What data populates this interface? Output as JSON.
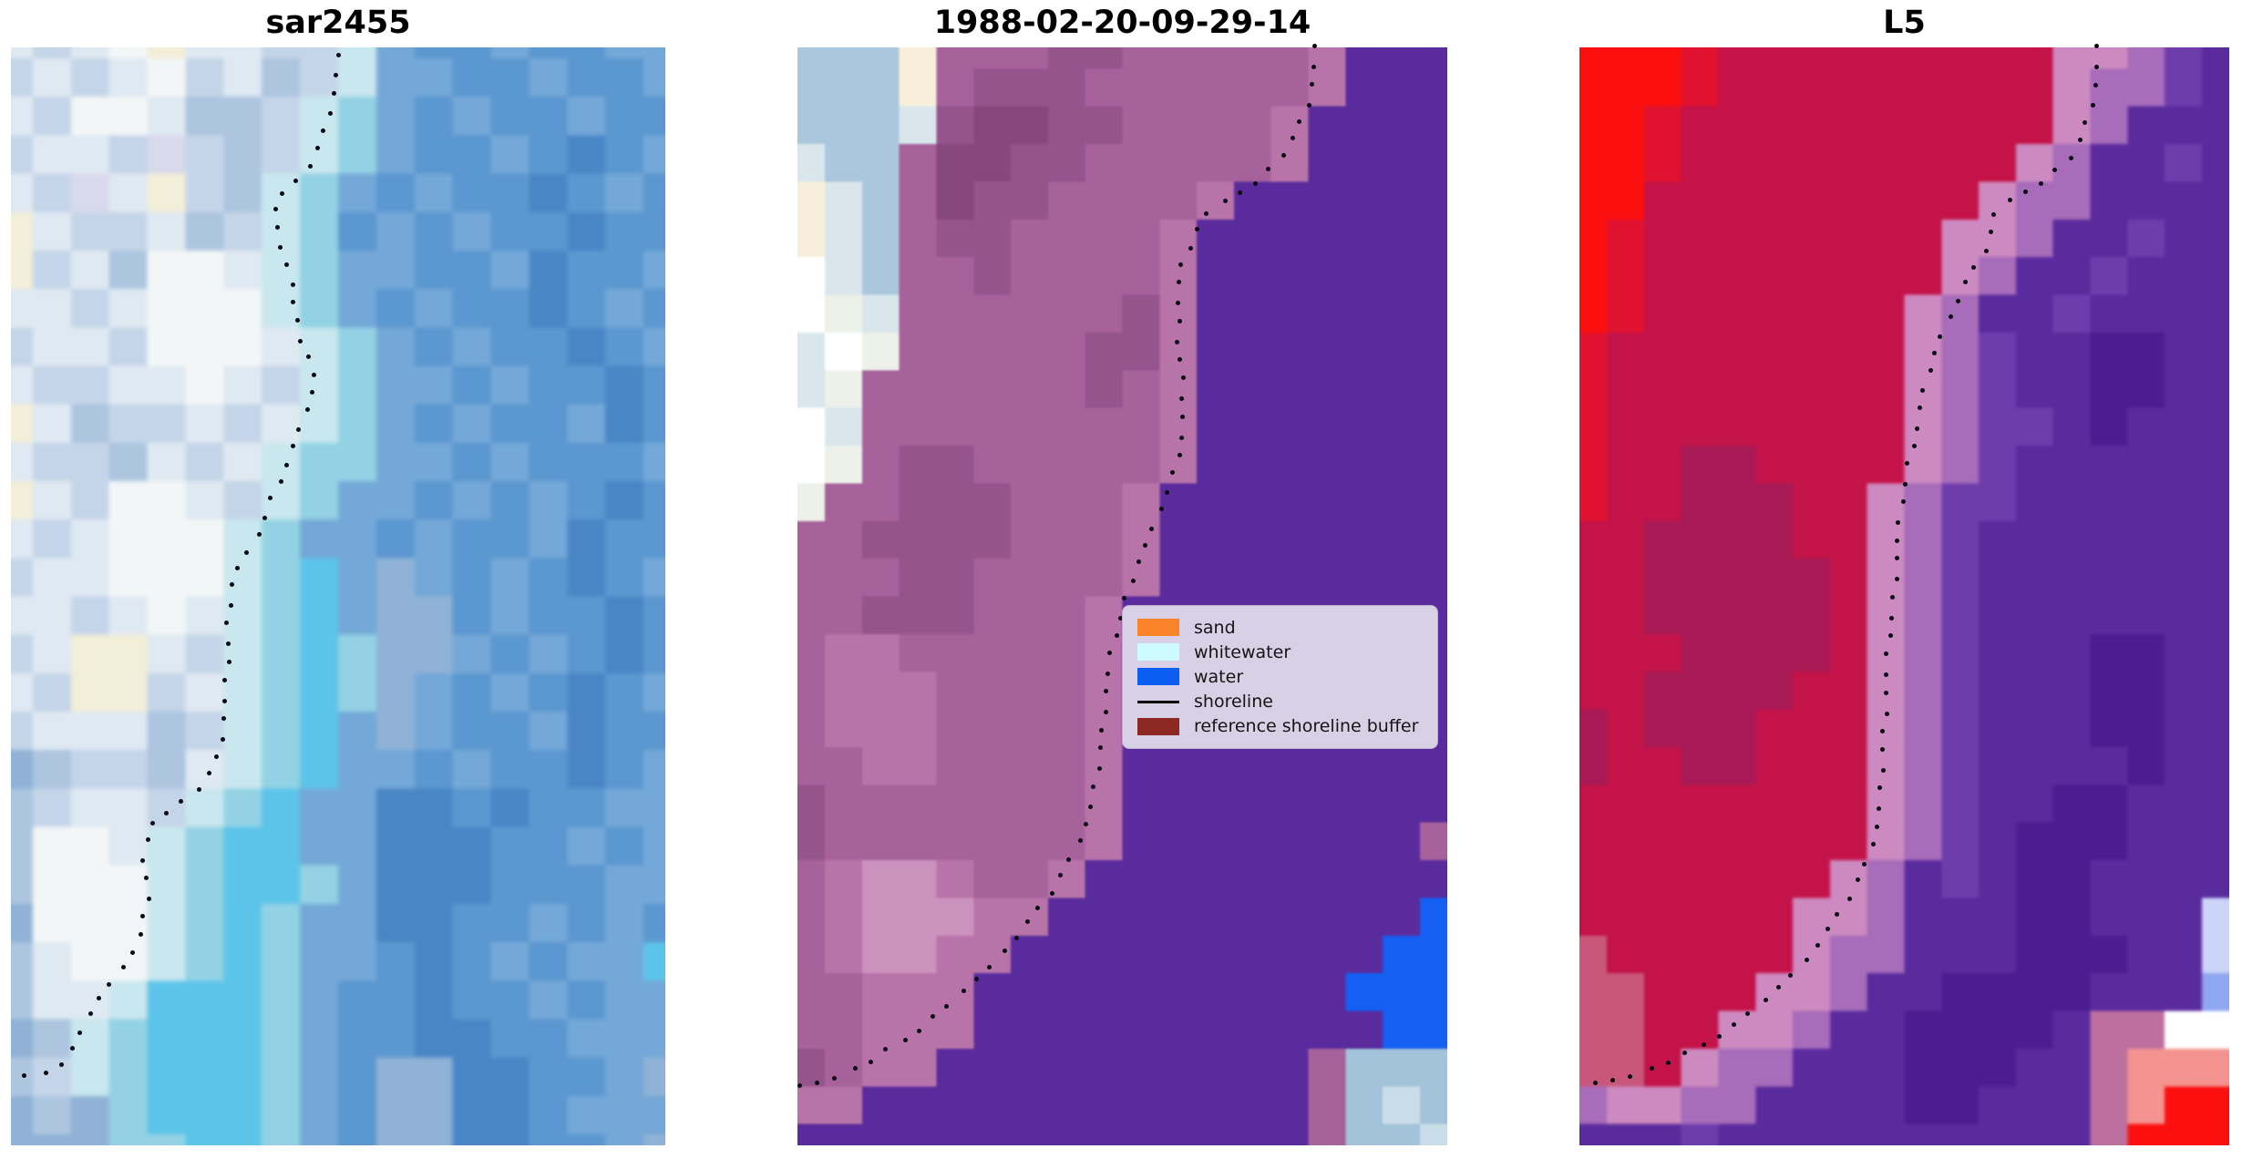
{
  "figure": {
    "background": "#ffffff"
  },
  "chart_data": {
    "type": "heatmap",
    "subtype": "satellite_image_panels_with_shoreline_overlay",
    "note": "Three co-located coastal satellite image panels; a dotted black reference shoreline crosses each panel. Pixel grids are approximate 18x30 color downsamples of the imagery.",
    "shoreline_style": {
      "color": "#0a0a14",
      "dot_size": 5,
      "dot_spacing": 21
    },
    "panels": [
      {
        "title": "sar2455",
        "kind": "SAR backscatter RGB composite (blues/whites)",
        "palette": {
          "0": "#f2eed8",
          "1": "#f3f6f6",
          "2": "#dfe9f2",
          "3": "#c5d5e9",
          "4": "#adc5df",
          "5": "#8fb2d6",
          "6": "#74a8d8",
          "7": "#5b97d0",
          "8": "#4a86c6",
          "9": "#c9e7ee",
          "a": "#93d2e4",
          "b": "#5dc4e9",
          "c": "#d9d9ec"
        },
        "grid": [
          "232102233967767766",
          "323213243966776776",
          "231124439a67677677",
          "3223c3439a67767876",
          "23c20349a676778767",
          "02332439a767677877",
          "03241129a667768776",
          "22321119a676778767",
          "322311129a67677876",
          "233221239a66767787",
          "024332329a67677687",
          "23342329aa66767776",
          "02311239a667676787",
          "2321119a6676776877",
          "3221119ab656767876",
          "2232129ab655767787",
          "3200239aba55676787",
          "2300329aba56767876",
          "3222439ab656776877",
          "5433429ab667677876",
          "432239ab6688787766",
          "41129abb6688877676",
          "41119abba688877766",
          "51119aba6688776767",
          "42119aba667876766b",
          "4229bbba6778776766",
          "549abbba6778877666",
          "439abbba6755887765",
          "545abbba6755887666",
          "555aabba6755887765"
        ],
        "shoreline": [
          [
            0.503,
            0.008
          ],
          [
            0.493,
            0.04
          ],
          [
            0.48,
            0.073
          ],
          [
            0.465,
            0.1
          ],
          [
            0.443,
            0.12
          ],
          [
            0.412,
            0.133
          ],
          [
            0.403,
            0.146
          ],
          [
            0.405,
            0.166
          ],
          [
            0.415,
            0.185
          ],
          [
            0.425,
            0.204
          ],
          [
            0.433,
            0.227
          ],
          [
            0.439,
            0.251
          ],
          [
            0.443,
            0.276
          ],
          [
            0.462,
            0.291
          ],
          [
            0.467,
            0.3
          ],
          [
            0.455,
            0.324
          ],
          [
            0.443,
            0.347
          ],
          [
            0.426,
            0.372
          ],
          [
            0.408,
            0.398
          ],
          [
            0.391,
            0.422
          ],
          [
            0.377,
            0.445
          ],
          [
            0.359,
            0.463
          ],
          [
            0.343,
            0.478
          ],
          [
            0.334,
            0.498
          ],
          [
            0.331,
            0.527
          ],
          [
            0.333,
            0.549
          ],
          [
            0.33,
            0.574
          ],
          [
            0.327,
            0.599
          ],
          [
            0.322,
            0.622
          ],
          [
            0.316,
            0.646
          ],
          [
            0.299,
            0.666
          ],
          [
            0.276,
            0.682
          ],
          [
            0.248,
            0.693
          ],
          [
            0.221,
            0.701
          ],
          [
            0.208,
            0.715
          ],
          [
            0.203,
            0.739
          ],
          [
            0.208,
            0.762
          ],
          [
            0.209,
            0.778
          ],
          [
            0.203,
            0.797
          ],
          [
            0.199,
            0.812
          ],
          [
            0.185,
            0.824
          ],
          [
            0.17,
            0.838
          ],
          [
            0.148,
            0.855
          ],
          [
            0.127,
            0.871
          ],
          [
            0.114,
            0.888
          ],
          [
            0.103,
            0.905
          ],
          [
            0.086,
            0.921
          ],
          [
            0.067,
            0.93
          ],
          [
            0.043,
            0.936
          ],
          [
            0.014,
            0.938
          ],
          [
            0.0,
            0.938
          ]
        ]
      },
      {
        "title": "1988-02-20-09-29-14",
        "kind": "classified Landsat scene (sand/whitewater/water classes over image)",
        "palette": {
          "0": "#ffffff",
          "1": "#d9e7ec",
          "2": "#edf1ea",
          "3": "#a7619b",
          "4": "#95548c",
          "5": "#b874a8",
          "6": "#cb92bd",
          "7": "#5a2b9d",
          "8": "#155ff2",
          "9": "#a3c3da",
          "a": "#c9dde8",
          "b": "#87487f",
          "s": "#abc7de",
          "t": "#f8efda"
        },
        "grid": [
          "ssst33344333335777",
          "ssst34443333335777",
          "sss14bb44333357777",
          "1ss3bb443333357777",
          "t1s3b4433335777777",
          "t1s344333357777777",
          "01s334333357777777",
          "021333333457777777",
          "102333334457777777",
          "123333334357777777",
          "013333333357777777",
          "023443333357777777",
          "233444333577777777",
          "334444333577777777",
          "333443333577777777",
          "334443335777777777",
          "355333335777777777",
          "355533335777777777",
          "355533335777777777",
          "335533335777777777",
          "433333335777777777",
          "433333335777777773",
          "356653357777777777",
          "356665577777777778",
          "356655777777777788",
          "335557777777777888",
          "335557777777777788",
          "435577777777773999",
          "5577777777777739a9",
          "77777777777777399a"
        ],
        "shoreline": [
          [
            0.799,
            0.0
          ],
          [
            0.794,
            0.027
          ],
          [
            0.784,
            0.052
          ],
          [
            0.77,
            0.076
          ],
          [
            0.753,
            0.092
          ],
          [
            0.731,
            0.11
          ],
          [
            0.697,
            0.127
          ],
          [
            0.663,
            0.138
          ],
          [
            0.634,
            0.149
          ],
          [
            0.61,
            0.171
          ],
          [
            0.593,
            0.198
          ],
          [
            0.585,
            0.227
          ],
          [
            0.585,
            0.26
          ],
          [
            0.59,
            0.293
          ],
          [
            0.595,
            0.326
          ],
          [
            0.59,
            0.355
          ],
          [
            0.581,
            0.384
          ],
          [
            0.564,
            0.413
          ],
          [
            0.544,
            0.442
          ],
          [
            0.525,
            0.469
          ],
          [
            0.508,
            0.496
          ],
          [
            0.494,
            0.524
          ],
          [
            0.483,
            0.552
          ],
          [
            0.475,
            0.581
          ],
          [
            0.471,
            0.611
          ],
          [
            0.466,
            0.641
          ],
          [
            0.459,
            0.672
          ],
          [
            0.446,
            0.704
          ],
          [
            0.422,
            0.737
          ],
          [
            0.39,
            0.77
          ],
          [
            0.348,
            0.803
          ],
          [
            0.297,
            0.837
          ],
          [
            0.238,
            0.87
          ],
          [
            0.175,
            0.9
          ],
          [
            0.108,
            0.925
          ],
          [
            0.042,
            0.942
          ],
          [
            0.001,
            0.947
          ]
        ]
      },
      {
        "title": "L5",
        "kind": "Landsat 5 false-color composite (reds/purples)",
        "palette": {
          "0": "#fb100f",
          "1": "#e01230",
          "2": "#c31349",
          "3": "#a81a55",
          "4": "#c9577c",
          "5": "#cc8ac0",
          "6": "#a76cba",
          "7": "#5a2b9d",
          "8": "#6d3dab",
          "9": "#4c1d90",
          "a": "#8fa6f0",
          "b": "#ccd4f8",
          "c": "#ffffff",
          "d": "#f4938f",
          "f": "#bd6f9f"
        },
        "grid": [
          "000122222222255687",
          "000122222222256687",
          "001222222222256777",
          "001222222222567787",
          "002222222225667777",
          "012222222255677877",
          "012222222256778777",
          "012222222567787777",
          "122222222568779977",
          "122222222568779977",
          "122222222568879777",
          "122332222568777777",
          "122333225688777777",
          "223333225687777777",
          "223333325687777777",
          "223333325687777777",
          "222333325687779977",
          "223333225687779977",
          "323332225687779977",
          "322332225687777977",
          "222222225687799777",
          "222222225687999777",
          "222222256787997777",
          "22222255677799777b",
          "42222256677799977b",
          "44222556779999777a",
          "44225567799997ffcc",
          "44256677799977fddd",
          "65566777799777fd00",
          "77787777777777f000"
        ],
        "shoreline": [
          [
            0.799,
            0.0
          ],
          [
            0.794,
            0.032
          ],
          [
            0.784,
            0.061
          ],
          [
            0.771,
            0.085
          ],
          [
            0.753,
            0.102
          ],
          [
            0.722,
            0.119
          ],
          [
            0.686,
            0.131
          ],
          [
            0.648,
            0.144
          ],
          [
            0.635,
            0.156
          ],
          [
            0.631,
            0.177
          ],
          [
            0.613,
            0.197
          ],
          [
            0.588,
            0.222
          ],
          [
            0.564,
            0.251
          ],
          [
            0.546,
            0.28
          ],
          [
            0.534,
            0.305
          ],
          [
            0.522,
            0.339
          ],
          [
            0.509,
            0.372
          ],
          [
            0.499,
            0.405
          ],
          [
            0.492,
            0.438
          ],
          [
            0.487,
            0.471
          ],
          [
            0.483,
            0.505
          ],
          [
            0.477,
            0.538
          ],
          [
            0.473,
            0.571
          ],
          [
            0.47,
            0.604
          ],
          [
            0.467,
            0.637
          ],
          [
            0.466,
            0.666
          ],
          [
            0.461,
            0.7
          ],
          [
            0.445,
            0.737
          ],
          [
            0.419,
            0.77
          ],
          [
            0.386,
            0.802
          ],
          [
            0.342,
            0.835
          ],
          [
            0.29,
            0.866
          ],
          [
            0.229,
            0.895
          ],
          [
            0.161,
            0.918
          ],
          [
            0.094,
            0.934
          ],
          [
            0.031,
            0.944
          ],
          [
            0.001,
            0.947
          ]
        ]
      }
    ],
    "legend": {
      "location": "middle panel, right-center",
      "background": "#d8d1e6",
      "items": [
        {
          "label": "sand",
          "swatch": "patch",
          "color": "#f98329"
        },
        {
          "label": "whitewater",
          "swatch": "patch",
          "color": "#cdfafe"
        },
        {
          "label": "water",
          "swatch": "patch",
          "color": "#0c5ef0"
        },
        {
          "label": "shoreline",
          "swatch": "line",
          "color": "#000000"
        },
        {
          "label": "reference shoreline buffer",
          "swatch": "patch",
          "color": "#8d2822"
        }
      ]
    }
  }
}
